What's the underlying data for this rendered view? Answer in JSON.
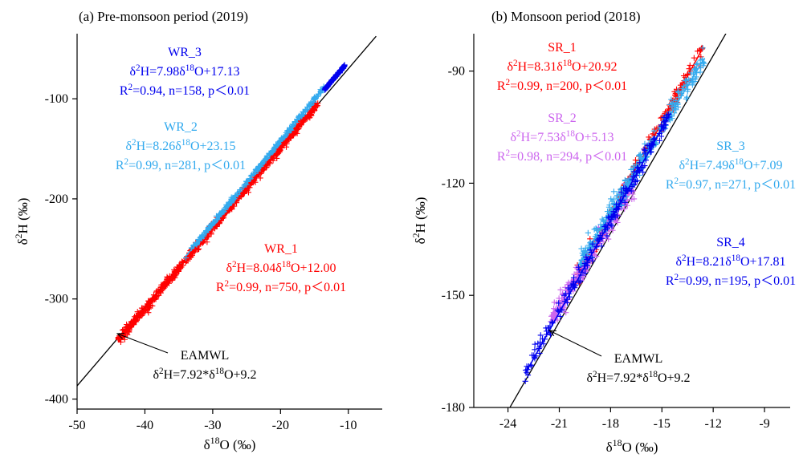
{
  "chart_data": [
    {
      "panel_title": "(a) Pre-monsoon period (2019)",
      "type": "scatter",
      "xlabel": "δ18O (‰)",
      "ylabel": "δ2H (‰)",
      "xlim": [
        -50,
        -5
      ],
      "ylim": [
        -410,
        -35
      ],
      "xticks": [
        -50,
        -40,
        -30,
        -20,
        -10
      ],
      "yticks": [
        -100,
        -200,
        -300,
        -400
      ],
      "grid": false,
      "reference_line": {
        "name": "EAMWL",
        "equation": "δ2H=7.92*δ18O+9.2",
        "slope": 7.92,
        "intercept": 9.2,
        "color": "#000000",
        "x_range": [
          -50,
          -5.9
        ]
      },
      "series": [
        {
          "name": "WR_1",
          "color": "#ff0000",
          "equation": "δ2H=8.04δ18O+12.00",
          "stats": "R2=0.99, n=750, p<0.01",
          "slope": 8.04,
          "intercept": 12.0,
          "n": 750,
          "x_range": [
            -44.0,
            -14.5
          ],
          "scatter": 2.2,
          "marker": "+"
        },
        {
          "name": "WR_2",
          "color": "#33aaee",
          "equation": "δ2H=8.26δ18O+23.15",
          "stats": "R2=0.99, n=281, p<0.01",
          "slope": 8.26,
          "intercept": 23.15,
          "n": 281,
          "x_range": [
            -34.0,
            -13.5
          ],
          "scatter": 1.0,
          "marker": "+"
        },
        {
          "name": "WR_3",
          "color": "#0000ee",
          "equation": "δ2H=7.98δ18O+17.13",
          "stats": "R2=0.94, n=158, p<0.01",
          "slope": 7.98,
          "intercept": 17.13,
          "n": 158,
          "x_range": [
            -13.5,
            -10.5
          ],
          "scatter": 0.5,
          "marker": "+"
        }
      ],
      "annotations": [
        {
          "series": "WR_3",
          "label": "WR_3",
          "equation": "δ2H=7.98δ18O+17.13",
          "stats": "R2=0.94, n=158, p<0.01",
          "color": "#0000ee"
        },
        {
          "series": "WR_2",
          "label": "WR_2",
          "equation": "δ2H=8.26δ18O+23.15",
          "stats": "R2=0.99, n=281, p<0.01",
          "color": "#33aaee"
        },
        {
          "series": "WR_1",
          "label": "WR_1",
          "equation": "δ2H=8.04δ18O+12.00",
          "stats": "R2=0.99, n=750, p<0.01",
          "color": "#ff0000"
        },
        {
          "series": "EAMWL",
          "label": "EAMWL",
          "equation": "δ2H=7.92*δ18O+9.2",
          "color": "#000000"
        }
      ]
    },
    {
      "panel_title": "(b) Monsoon period (2018)",
      "type": "scatter",
      "xlabel": "δ18O (‰)",
      "ylabel": "δ2H (‰)",
      "xlim": [
        -26,
        -7.5
      ],
      "ylim": [
        -180,
        -80
      ],
      "xticks": [
        -24,
        -21,
        -18,
        -15,
        -12,
        -9
      ],
      "yticks": [
        -90,
        -120,
        -150,
        -180
      ],
      "grid": false,
      "reference_line": {
        "name": "EAMWL",
        "equation": "δ2H=7.92*δ18O+9.2",
        "slope": 7.92,
        "intercept": 9.2,
        "color": "#000000",
        "x_range": [
          -23.9,
          -11.0
        ]
      },
      "series": [
        {
          "name": "SR_1",
          "color": "#ff0000",
          "equation": "δ2H=8.31δ18O+20.92",
          "stats": "R2=0.99, n=200, p<0.01",
          "slope": 8.31,
          "intercept": 20.92,
          "n": 200,
          "x_range": [
            -20.0,
            -12.6
          ],
          "scatter": 1.2,
          "marker": "+"
        },
        {
          "name": "SR_2",
          "color": "#cc66ee",
          "equation": "δ2H=7.53δ18O+5.13",
          "stats": "R2=0.98, n=294, p<0.01",
          "slope": 7.53,
          "intercept": 5.13,
          "n": 294,
          "x_range": [
            -21.5,
            -16.5
          ],
          "scatter": 1.6,
          "marker": "+"
        },
        {
          "name": "SR_3",
          "color": "#33aaee",
          "equation": "δ2H=7.49δ18O+7.09",
          "stats": "R2=0.97, n=271, p<0.01",
          "slope": 7.49,
          "intercept": 7.09,
          "n": 271,
          "x_range": [
            -19.8,
            -12.5
          ],
          "scatter": 1.5,
          "marker": "+"
        },
        {
          "name": "SR_4",
          "color": "#0000ee",
          "equation": "δ2H=8.21δ18O+17.81",
          "stats": "R2=0.99, n=195, p<0.01",
          "slope": 8.21,
          "intercept": 17.81,
          "n": 195,
          "x_range": [
            -23.0,
            -14.5
          ],
          "scatter": 1.3,
          "marker": "+"
        }
      ],
      "annotations": [
        {
          "series": "SR_1",
          "label": "SR_1",
          "equation": "δ2H=8.31δ18O+20.92",
          "stats": "R2=0.99, n=200, p<0.01",
          "color": "#ff0000"
        },
        {
          "series": "SR_2",
          "label": "SR_2",
          "equation": "δ2H=7.53δ18O+5.13",
          "stats": "R2=0.98, n=294, p<0.01",
          "color": "#cc66ee"
        },
        {
          "series": "SR_3",
          "label": "SR_3",
          "equation": "δ2H=7.49δ18O+7.09",
          "stats": "R2=0.97, n=271, p<0.01",
          "color": "#33aaee"
        },
        {
          "series": "SR_4",
          "label": "SR_4",
          "equation": "δ2H=8.21δ18O+17.81",
          "stats": "R2=0.99, n=195, p<0.01",
          "color": "#0000ee"
        },
        {
          "series": "EAMWL",
          "label": "EAMWL",
          "equation": "δ2H=7.92*δ18O+9.2",
          "color": "#000000"
        }
      ]
    }
  ]
}
